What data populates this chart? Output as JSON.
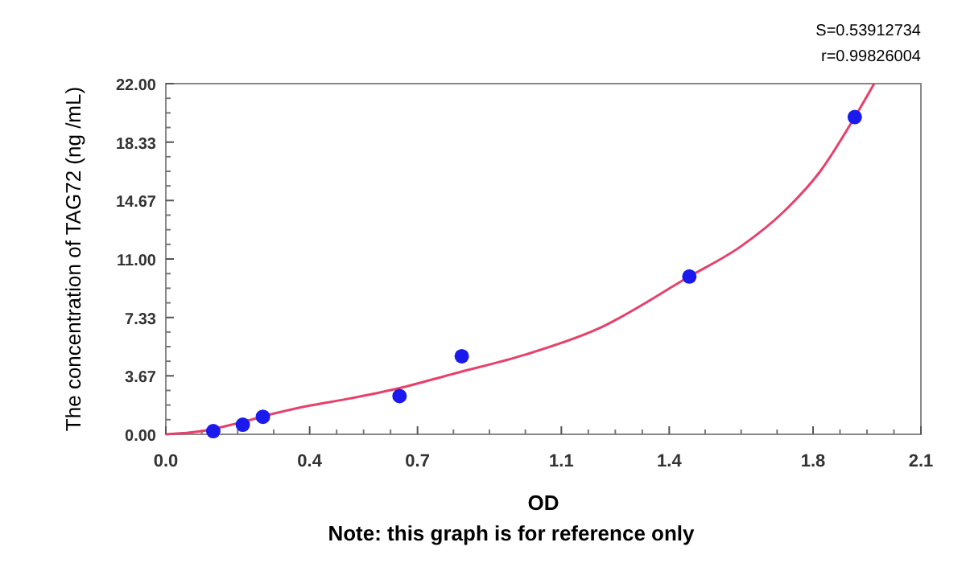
{
  "chart_data": {
    "type": "scatter",
    "xlabel": "OD",
    "ylabel": "The concentration of TAG72 (ng /mL)",
    "annotations": [
      "S=0.53912734",
      "r=0.99826004",
      "Note: this graph is for reference only"
    ],
    "xlim": [
      0,
      2.1
    ],
    "ylim": [
      0,
      22
    ],
    "xticks": [
      {
        "value": 0,
        "label": "0.0"
      },
      0.4,
      0.7,
      1.1,
      1.4,
      1.8,
      2.1
    ],
    "yticks": [
      {
        "value": 0,
        "label": "0.00"
      },
      3.67,
      7.33,
      {
        "value": 11,
        "label": "11.00"
      },
      14.67,
      18.33,
      {
        "value": 22,
        "label": "22.00"
      }
    ],
    "grid": false,
    "series": [
      {
        "color": "#1a1aee",
        "marker": "circle",
        "x": [
          0.132,
          0.214,
          0.27,
          0.65,
          0.823,
          1.456,
          1.916
        ],
        "values": [
          0.2,
          0.6,
          1.1,
          2.4,
          4.9,
          9.9,
          19.9
        ]
      },
      {
        "type": "line",
        "color": "#e8406a",
        "line_style": "solid",
        "x": [
          0,
          0.1,
          0.2,
          0.3,
          0.4,
          0.5,
          0.65,
          0.8,
          1.0,
          1.2,
          1.456,
          1.6,
          1.72,
          1.82,
          1.916,
          1.97
        ],
        "values": [
          0,
          0.2,
          0.7,
          1.3,
          1.8,
          2.2,
          2.9,
          3.8,
          5.0,
          6.6,
          9.9,
          11.8,
          14.0,
          16.5,
          19.9,
          22
        ]
      }
    ]
  }
}
